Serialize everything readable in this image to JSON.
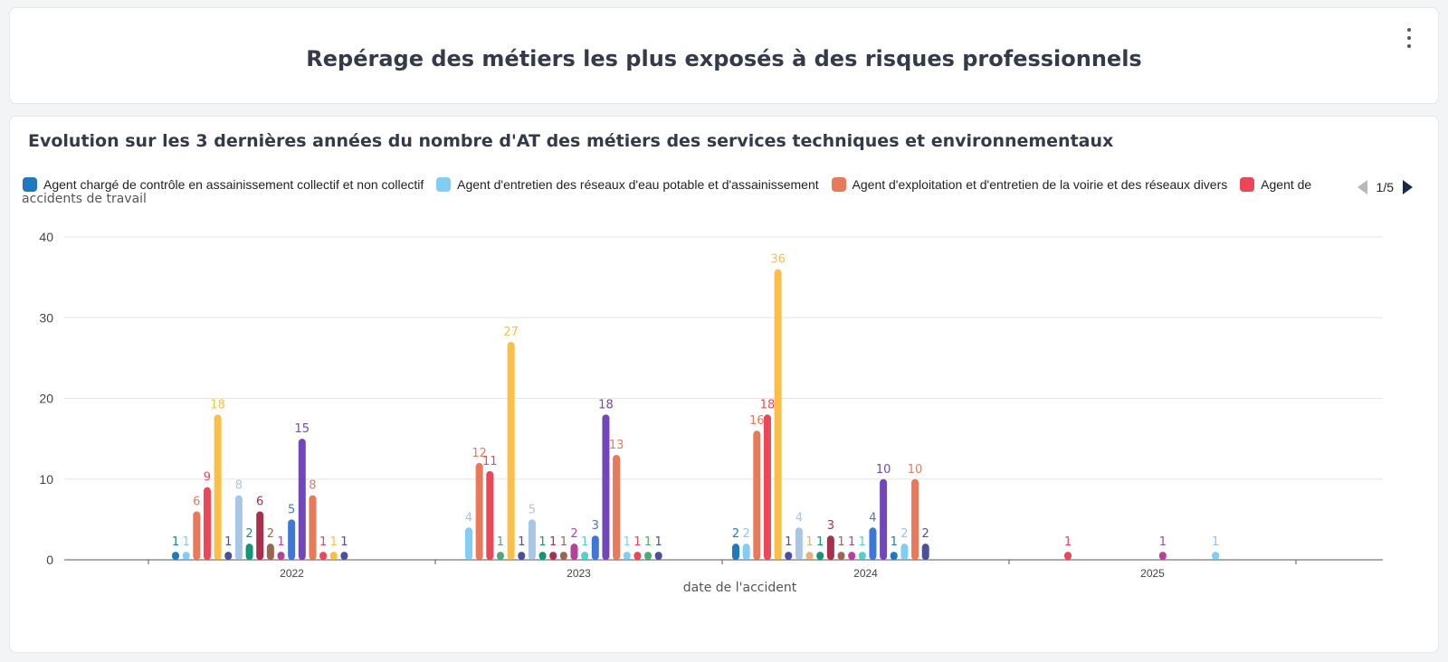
{
  "header": {
    "title": "Repérage des métiers les plus exposés à des risques professionnels",
    "menu_icon": "kebab-menu-icon"
  },
  "chart_data": {
    "type": "bar",
    "title": "Evolution sur les 3 dernières années du nombre d'AT des métiers des services techniques et environnementaux",
    "xlabel": "date de l'accident",
    "ylabel": "accidents de travail",
    "ylim": [
      0,
      40
    ],
    "yticks": [
      0,
      10,
      20,
      30,
      40
    ],
    "categories": [
      "2022",
      "2023",
      "2024",
      "2025"
    ],
    "legend": {
      "items": [
        {
          "name": "Agent chargé de contrôle en assainissement collectif et non collectif",
          "color": "#2079c0"
        },
        {
          "name": "Agent d'entretien des réseaux d'eau potable et d'assainissement",
          "color": "#82cdf6"
        },
        {
          "name": "Agent d'exploitation et d'entretien de la voirie et des réseaux divers",
          "color": "#e8795a"
        },
        {
          "name": "Agent de",
          "color": "#ec4759"
        }
      ],
      "page": "1/5"
    },
    "bars": [
      {
        "year": "2022",
        "value": 1,
        "color": "#2079c0"
      },
      {
        "year": "2022",
        "value": 1,
        "color": "#82cdf6"
      },
      {
        "year": "2022",
        "value": 6,
        "color": "#e8795a"
      },
      {
        "year": "2022",
        "value": 9,
        "color": "#ec4759"
      },
      {
        "year": "2022",
        "value": 18,
        "color": "#fbbe47"
      },
      {
        "year": "2022",
        "value": 1,
        "color": "#4c4e9e"
      },
      {
        "year": "2022",
        "value": 8,
        "color": "#a8c6e6"
      },
      {
        "year": "2022",
        "value": 2,
        "color": "#14957a"
      },
      {
        "year": "2022",
        "value": 6,
        "color": "#a8304f"
      },
      {
        "year": "2022",
        "value": 2,
        "color": "#9a6650"
      },
      {
        "year": "2022",
        "value": 1,
        "color": "#b5419a"
      },
      {
        "year": "2022",
        "value": 5,
        "color": "#3d78d8"
      },
      {
        "year": "2022",
        "value": 15,
        "color": "#7147ba"
      },
      {
        "year": "2022",
        "value": 8,
        "color": "#e8795a"
      },
      {
        "year": "2022",
        "value": 1,
        "color": "#ec4759"
      },
      {
        "year": "2022",
        "value": 1,
        "color": "#fbbe47"
      },
      {
        "year": "2022",
        "value": 1,
        "color": "#4c4e9e"
      },
      {
        "year": "2023",
        "value": 4,
        "color": "#82cdf6"
      },
      {
        "year": "2023",
        "value": 12,
        "color": "#e8795a"
      },
      {
        "year": "2023",
        "value": 11,
        "color": "#ec4759"
      },
      {
        "year": "2023",
        "value": 1,
        "color": "#50a87a"
      },
      {
        "year": "2023",
        "value": 27,
        "color": "#fbbe47"
      },
      {
        "year": "2023",
        "value": 1,
        "color": "#4c4e9e"
      },
      {
        "year": "2023",
        "value": 5,
        "color": "#a8c6e6"
      },
      {
        "year": "2023",
        "value": 1,
        "color": "#14957a"
      },
      {
        "year": "2023",
        "value": 1,
        "color": "#a8304f"
      },
      {
        "year": "2023",
        "value": 1,
        "color": "#9a6650"
      },
      {
        "year": "2023",
        "value": 2,
        "color": "#b5419a"
      },
      {
        "year": "2023",
        "value": 1,
        "color": "#52d1cf"
      },
      {
        "year": "2023",
        "value": 3,
        "color": "#3d78d8"
      },
      {
        "year": "2023",
        "value": 18,
        "color": "#7147ba"
      },
      {
        "year": "2023",
        "value": 13,
        "color": "#e8795a"
      },
      {
        "year": "2023",
        "value": 1,
        "color": "#82cdf6"
      },
      {
        "year": "2023",
        "value": 1,
        "color": "#ec4759"
      },
      {
        "year": "2023",
        "value": 1,
        "color": "#50a87a"
      },
      {
        "year": "2023",
        "value": 1,
        "color": "#4c4e9e"
      },
      {
        "year": "2024",
        "value": 2,
        "color": "#2079c0"
      },
      {
        "year": "2024",
        "value": 2,
        "color": "#82cdf6"
      },
      {
        "year": "2024",
        "value": 16,
        "color": "#e8795a"
      },
      {
        "year": "2024",
        "value": 18,
        "color": "#ec4759"
      },
      {
        "year": "2024",
        "value": 36,
        "color": "#fbbe47"
      },
      {
        "year": "2024",
        "value": 1,
        "color": "#4c4e9e"
      },
      {
        "year": "2024",
        "value": 4,
        "color": "#a8c6e6"
      },
      {
        "year": "2024",
        "value": 1,
        "color": "#e8b07d"
      },
      {
        "year": "2024",
        "value": 1,
        "color": "#14957a"
      },
      {
        "year": "2024",
        "value": 3,
        "color": "#a8304f"
      },
      {
        "year": "2024",
        "value": 1,
        "color": "#9a6650"
      },
      {
        "year": "2024",
        "value": 1,
        "color": "#b5419a"
      },
      {
        "year": "2024",
        "value": 1,
        "color": "#52d1cf"
      },
      {
        "year": "2024",
        "value": 4,
        "color": "#3d78d8"
      },
      {
        "year": "2024",
        "value": 10,
        "color": "#7147ba"
      },
      {
        "year": "2024",
        "value": 1,
        "color": "#2079c0"
      },
      {
        "year": "2024",
        "value": 2,
        "color": "#82cdf6"
      },
      {
        "year": "2024",
        "value": 10,
        "color": "#e8795a"
      },
      {
        "year": "2024",
        "value": 2,
        "color": "#4c4e9e"
      },
      {
        "year": "2025",
        "value": 1,
        "color": "#ec4759"
      },
      {
        "year": "2025",
        "value": 1,
        "color": "#b5419a"
      },
      {
        "year": "2025",
        "value": 1,
        "color": "#82cdf6"
      }
    ]
  }
}
